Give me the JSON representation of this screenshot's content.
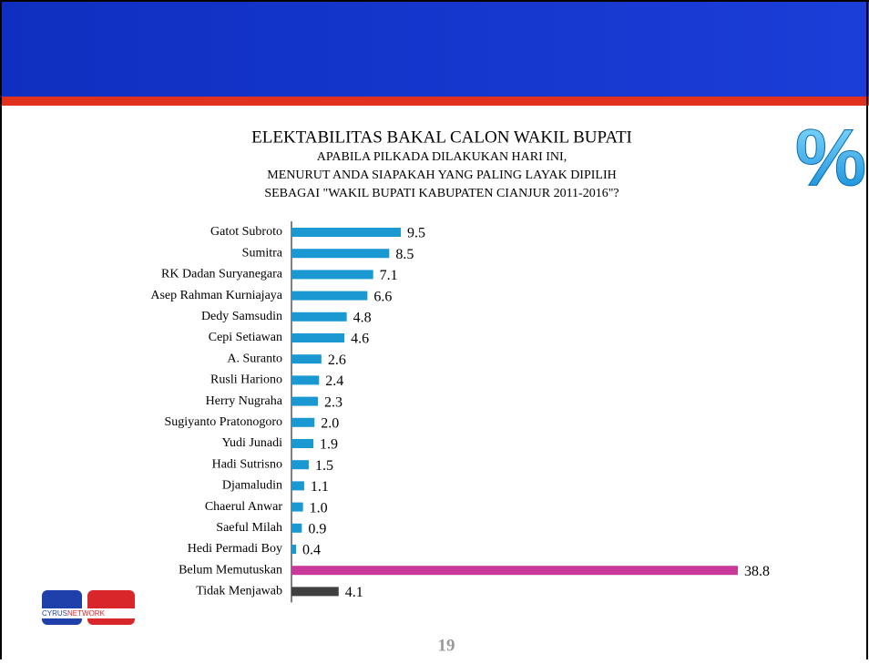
{
  "chart_data": {
    "type": "hbar",
    "title": "ELEKTABILITAS BAKAL CALON WAKIL BUPATI",
    "subtitle": [
      "APABILA PILKADA DILAKUKAN HARI INI,",
      "MENURUT ANDA SIAPAKAH YANG PALING LAYAK DIPILIH",
      "SEBAGAI \"WAKIL BUPATI KABUPATEN CIANJUR 2011-2016\"?"
    ],
    "categories": [
      "Gatot Subroto",
      "Sumitra",
      "RK Dadan Suryanegara",
      "Asep Rahman Kurniajaya",
      "Dedy Samsudin",
      "Cepi Setiawan",
      "A. Suranto",
      "Rusli Hariono",
      "Herry Nugraha",
      "Sugiyanto Pratonogoro",
      "Yudi Junadi",
      "Hadi Sutrisno",
      "Djamaludin",
      "Chaerul Anwar",
      "Saeful Milah",
      "Hedi Permadi Boy",
      "Belum Memutuskan",
      "Tidak Menjawab"
    ],
    "values": [
      9.5,
      8.5,
      7.1,
      6.6,
      4.8,
      4.6,
      2.6,
      2.4,
      2.3,
      2.0,
      1.9,
      1.5,
      1.1,
      1.0,
      0.9,
      0.4,
      38.8,
      4.1
    ],
    "value_labels": [
      "9.5",
      "8.5",
      "7.1",
      "6.6",
      "4.8",
      "4.6",
      "2.6",
      "2.4",
      "2.3",
      "2.0",
      "1.9",
      "1.5",
      "1.1",
      "1.0",
      "0.9",
      "0.4",
      "38.8",
      "4.1"
    ],
    "colors": [
      "#1a98d2",
      "#1a98d2",
      "#1a98d2",
      "#1a98d2",
      "#1a98d2",
      "#1a98d2",
      "#1a98d2",
      "#1a98d2",
      "#1a98d2",
      "#1a98d2",
      "#1a98d2",
      "#1a98d2",
      "#1a98d2",
      "#1a98d2",
      "#1a98d2",
      "#1a98d2",
      "#c8399a",
      "#404040"
    ]
  },
  "symbol": "%",
  "logo": {
    "part1": "CYRUS",
    "part2": "NETWORK"
  },
  "page_number": "19"
}
